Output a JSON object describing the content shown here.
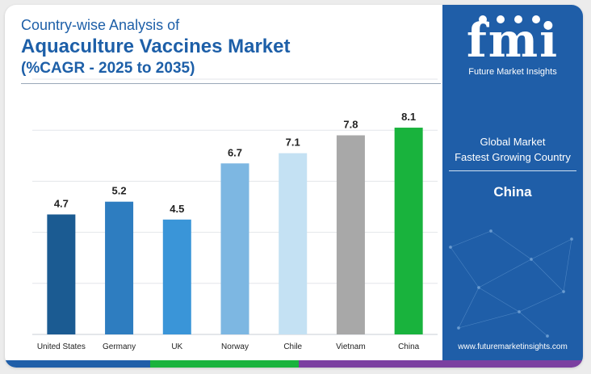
{
  "header": {
    "line1": "Country-wise Analysis of",
    "line2": "Aquaculture Vaccines Market",
    "line3": "(%CAGR - 2025 to 2035)"
  },
  "chart_data": {
    "type": "bar",
    "categories": [
      "United States",
      "Germany",
      "UK",
      "Norway",
      "Chile",
      "Vietnam",
      "China"
    ],
    "values": [
      4.7,
      5.2,
      4.5,
      6.7,
      7.1,
      7.8,
      8.1
    ],
    "colors": [
      "#1b5b92",
      "#2e7dc0",
      "#3a95d8",
      "#7db7e2",
      "#c4e1f3",
      "#a8a8a8",
      "#19b33d"
    ],
    "ylim": [
      0,
      10
    ],
    "grid": true
  },
  "sidebar": {
    "logo": "fmi",
    "logo_sub": "Future Market Insights",
    "label1": "Global Market",
    "label2": "Fastest Growing Country",
    "country": "China",
    "url": "www.futuremarketinsights.com"
  },
  "colors": {
    "title": "#1d5fa8",
    "sidebar_bg": "#1f5ea8",
    "bottom_bar": [
      "#1f5ea8",
      "#19b33d",
      "#7b3fa0"
    ]
  }
}
